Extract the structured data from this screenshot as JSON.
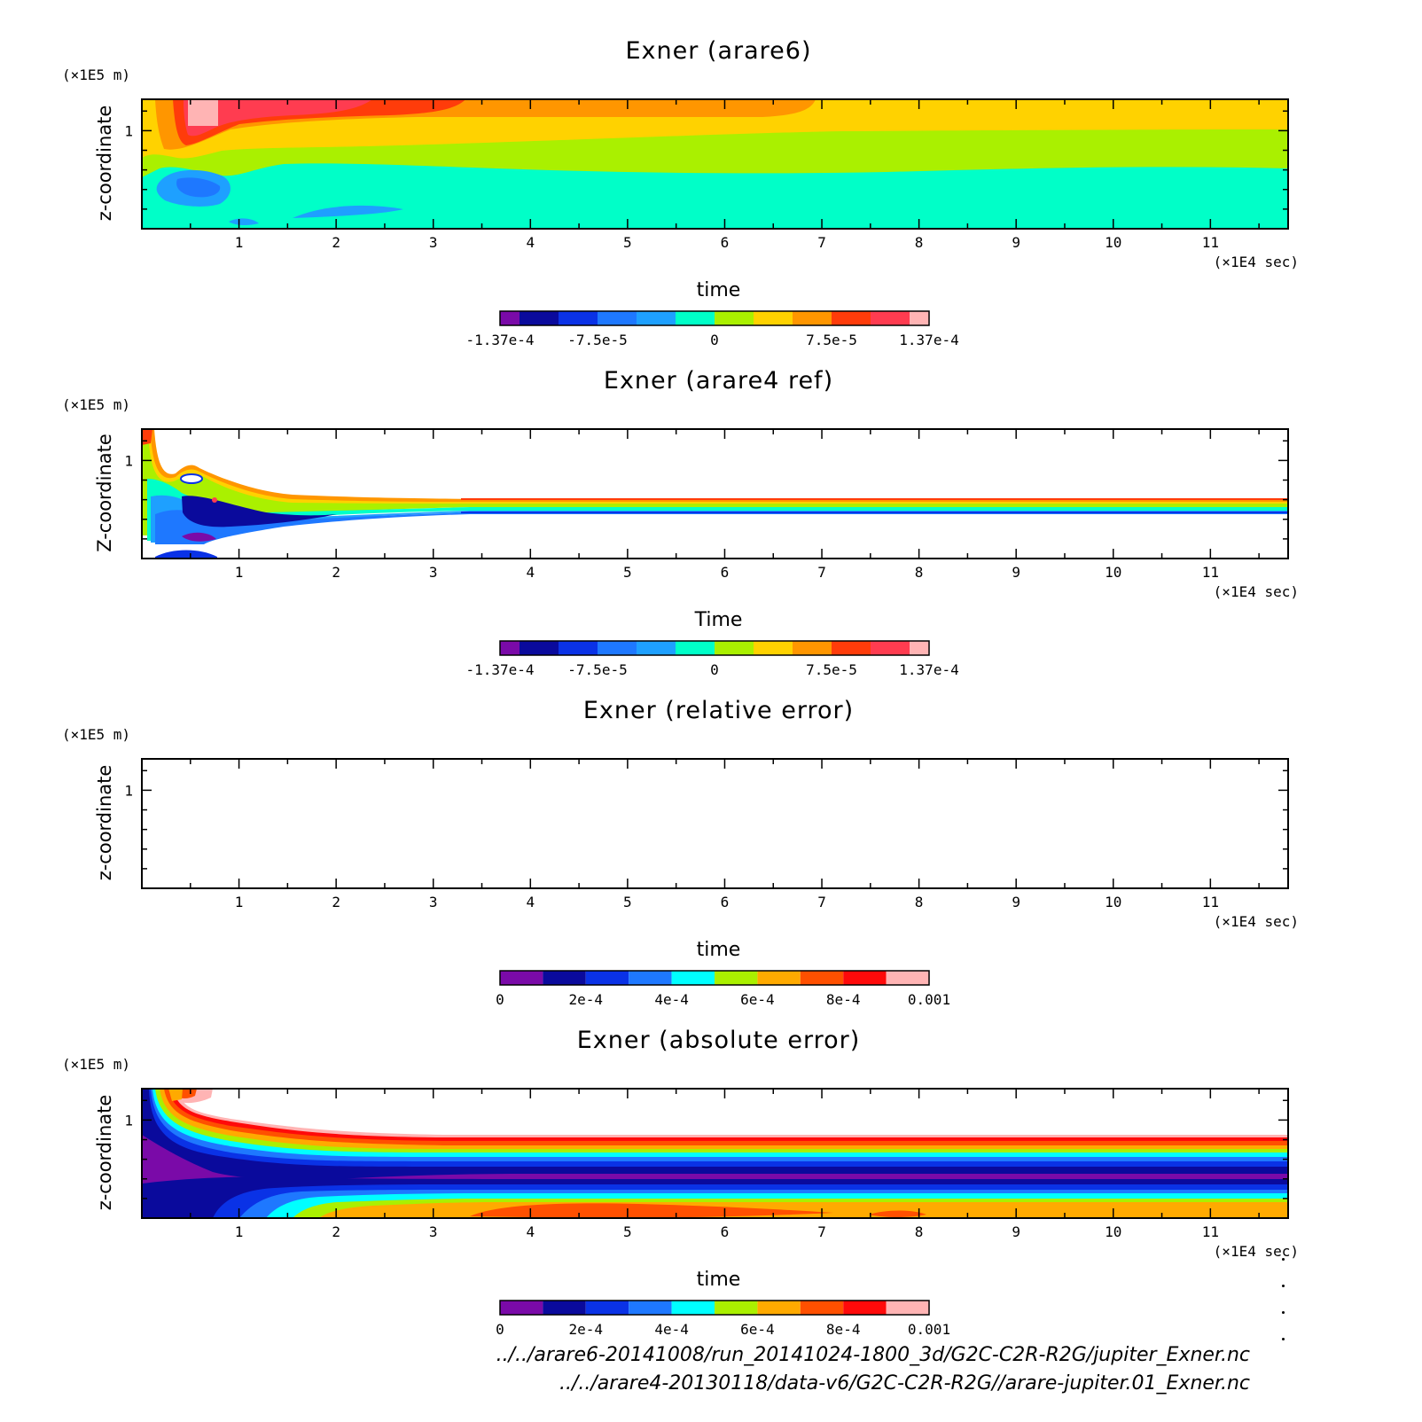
{
  "panels": [
    {
      "title": "Exner (arare6)",
      "xlabel": "time",
      "ylabel": "z-coordinate",
      "y_unit": "(×1E5 m)",
      "x_unit": "(×1E4 sec)",
      "x_ticks": [
        "1",
        "2",
        "3",
        "4",
        "5",
        "6",
        "7",
        "8",
        "9",
        "10",
        "11"
      ],
      "y_ticks": [
        "1"
      ],
      "colorbar": {
        "colors": [
          "#7a0aa8",
          "#0a0a9c",
          "#0a32e6",
          "#1e78ff",
          "#1ea0ff",
          "#00ffc8",
          "#aaf000",
          "#ffd200",
          "#ff9600",
          "#ff3c0a",
          "#ff3c50",
          "#ffb4b4"
        ],
        "labels": [
          "-1.37e-4",
          "-7.5e-5",
          "0",
          "7.5e-5",
          "1.37e-4"
        ]
      }
    },
    {
      "title": "Exner (arare4 ref)",
      "xlabel": "Time",
      "ylabel": "Z-coordinate",
      "y_unit": "(×1E5 m)",
      "x_unit": "(×1E4 sec)",
      "x_ticks": [
        "1",
        "2",
        "3",
        "4",
        "5",
        "6",
        "7",
        "8",
        "9",
        "10",
        "11"
      ],
      "y_ticks": [
        "1"
      ],
      "colorbar": {
        "colors": [
          "#7a0aa8",
          "#0a0a9c",
          "#0a32e6",
          "#1e78ff",
          "#1ea0ff",
          "#00ffc8",
          "#aaf000",
          "#ffd200",
          "#ff9600",
          "#ff3c0a",
          "#ff3c50",
          "#ffb4b4"
        ],
        "labels": [
          "-1.37e-4",
          "-7.5e-5",
          "0",
          "7.5e-5",
          "1.37e-4"
        ]
      }
    },
    {
      "title": "Exner (relative error)",
      "xlabel": "time",
      "ylabel": "z-coordinate",
      "y_unit": "(×1E5 m)",
      "x_unit": "(×1E4 sec)",
      "x_ticks": [
        "1",
        "2",
        "3",
        "4",
        "5",
        "6",
        "7",
        "8",
        "9",
        "10",
        "11"
      ],
      "y_ticks": [
        "1"
      ],
      "colorbar": {
        "colors": [
          "#7a0aa8",
          "#0a0a9c",
          "#0a32e6",
          "#1e78ff",
          "#00ffff",
          "#aaf000",
          "#ffaa00",
          "#ff5000",
          "#ff0a0a",
          "#ffb4b4"
        ],
        "labels": [
          "0",
          "2e-4",
          "4e-4",
          "6e-4",
          "8e-4",
          "0.001"
        ]
      }
    },
    {
      "title": "Exner (absolute error)",
      "xlabel": "time",
      "ylabel": "z-coordinate",
      "y_unit": "(×1E5 m)",
      "x_unit": "(×1E4 sec)",
      "x_ticks": [
        "1",
        "2",
        "3",
        "4",
        "5",
        "6",
        "7",
        "8",
        "9",
        "10",
        "11"
      ],
      "y_ticks": [
        "1"
      ],
      "colorbar": {
        "colors": [
          "#7a0aa8",
          "#0a0a9c",
          "#0a32e6",
          "#1e78ff",
          "#00ffff",
          "#aaf000",
          "#ffaa00",
          "#ff5000",
          "#ff0a0a",
          "#ffb4b4"
        ],
        "labels": [
          "0",
          "2e-4",
          "4e-4",
          "6e-4",
          "8e-4",
          "0.001"
        ]
      }
    }
  ],
  "footer": [
    "../../arare6-20141008/run_20141024-1800_3d/G2C-C2R-R2G/jupiter_Exner.nc",
    "../../arare4-20130118/data-v6/G2C-C2R-R2G//arare-jupiter.01_Exner.nc"
  ],
  "chart_data": [
    {
      "type": "heatmap",
      "title": "Exner (arare6)",
      "xlabel": "time",
      "ylabel": "z-coordinate",
      "x_unit": "×1E4 sec",
      "y_unit": "×1E5 m",
      "xlim": [
        0,
        11.8
      ],
      "ylim": [
        0,
        1.32
      ],
      "levels": [
        -0.000137,
        -7.5e-05,
        0,
        7.5e-05,
        0.000137
      ]
    },
    {
      "type": "heatmap",
      "title": "Exner (arare4 ref)",
      "xlabel": "Time",
      "ylabel": "Z-coordinate",
      "x_unit": "×1E4 sec",
      "y_unit": "×1E5 m",
      "xlim": [
        0,
        11.8
      ],
      "ylim": [
        0,
        1.32
      ],
      "levels": [
        -0.000137,
        -7.5e-05,
        0,
        7.5e-05,
        0.000137
      ]
    },
    {
      "type": "heatmap",
      "title": "Exner (relative error)",
      "xlabel": "time",
      "ylabel": "z-coordinate",
      "x_unit": "×1E4 sec",
      "y_unit": "×1E5 m",
      "xlim": [
        0,
        11.8
      ],
      "ylim": [
        0,
        1.32
      ],
      "levels": [
        0,
        0.0002,
        0.0004,
        0.0006,
        0.0008,
        0.001
      ]
    },
    {
      "type": "heatmap",
      "title": "Exner (absolute error)",
      "xlabel": "time",
      "ylabel": "z-coordinate",
      "x_unit": "×1E4 sec",
      "y_unit": "×1E5 m",
      "xlim": [
        0,
        11.8
      ],
      "ylim": [
        0,
        1.32
      ],
      "levels": [
        0,
        0.0002,
        0.0004,
        0.0006,
        0.0008,
        0.001
      ]
    }
  ]
}
